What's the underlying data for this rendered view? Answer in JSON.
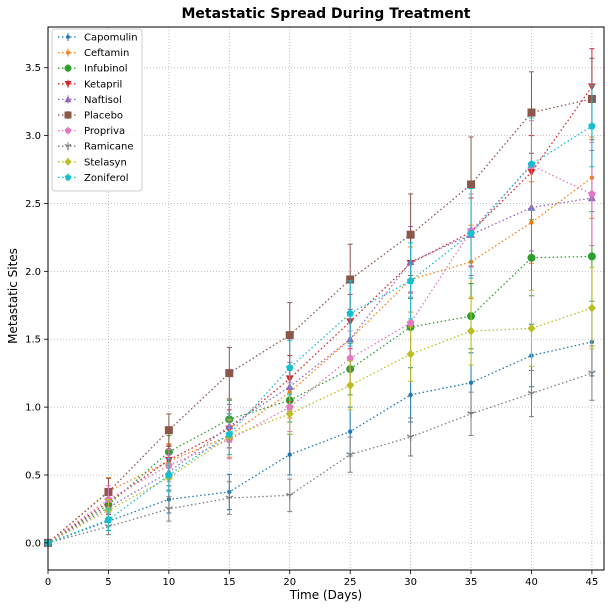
{
  "chart_data": {
    "type": "line",
    "title": "Metastatic Spread During Treatment",
    "xlabel": "Time (Days)",
    "ylabel": "Metastatic Sites",
    "xlim": [
      0,
      46
    ],
    "ylim": [
      -0.2,
      3.8
    ],
    "x_ticks": [
      "0",
      "5",
      "10",
      "15",
      "20",
      "25",
      "30",
      "35",
      "40",
      "45"
    ],
    "y_ticks": [
      "0.0",
      "0.5",
      "1.0",
      "1.5",
      "2.0",
      "2.5",
      "3.0",
      "3.5"
    ],
    "grid": true,
    "legend_position": "top-left",
    "x": [
      0,
      5,
      10,
      15,
      20,
      25,
      30,
      35,
      40,
      45
    ],
    "series": [
      {
        "name": "Capomulin",
        "color": "#1f77b4",
        "marker": "point",
        "values": [
          0,
          0.16,
          0.32,
          0.375,
          0.65,
          0.82,
          1.09,
          1.18,
          1.38,
          1.48
        ],
        "errors": [
          0,
          0.07,
          0.1,
          0.13,
          0.15,
          0.18,
          0.2,
          0.22,
          0.23,
          0.25
        ]
      },
      {
        "name": "Ceftamin",
        "color": "#ff7f0e",
        "marker": "point",
        "values": [
          0,
          0.38,
          0.6,
          0.79,
          1.11,
          1.5,
          1.94,
          2.07,
          2.36,
          2.69
        ],
        "errors": [
          0,
          0.1,
          0.13,
          0.16,
          0.19,
          0.22,
          0.24,
          0.27,
          0.3,
          0.3
        ]
      },
      {
        "name": "Infubinol",
        "color": "#2ca02c",
        "marker": "circle",
        "values": [
          0,
          0.28,
          0.67,
          0.91,
          1.05,
          1.28,
          1.59,
          1.67,
          2.1,
          2.11
        ],
        "errors": [
          0,
          0.09,
          0.12,
          0.14,
          0.16,
          0.19,
          0.21,
          0.24,
          0.28,
          0.33
        ]
      },
      {
        "name": "Ketapril",
        "color": "#d62728",
        "marker": "triangle-down",
        "values": [
          0,
          0.3,
          0.61,
          0.84,
          1.21,
          1.63,
          2.06,
          2.29,
          2.73,
          3.36
        ],
        "errors": [
          0,
          0.09,
          0.11,
          0.14,
          0.17,
          0.2,
          0.22,
          0.25,
          0.27,
          0.28
        ]
      },
      {
        "name": "Naftisol",
        "color": "#9467bd",
        "marker": "triangle-up",
        "values": [
          0,
          0.26,
          0.52,
          0.86,
          1.15,
          1.5,
          2.07,
          2.27,
          2.47,
          2.54
        ],
        "errors": [
          0,
          0.09,
          0.13,
          0.16,
          0.18,
          0.22,
          0.26,
          0.3,
          0.32,
          0.35
        ]
      },
      {
        "name": "Placebo",
        "color": "#8c564b",
        "marker": "square",
        "values": [
          0,
          0.375,
          0.83,
          1.25,
          1.53,
          1.94,
          2.27,
          2.64,
          3.17,
          3.27
        ],
        "errors": [
          0,
          0.1,
          0.12,
          0.19,
          0.24,
          0.26,
          0.3,
          0.35,
          0.3,
          0.3
        ]
      },
      {
        "name": "Propriva",
        "color": "#e377c2",
        "marker": "pentagon",
        "values": [
          0,
          0.32,
          0.57,
          0.76,
          1.0,
          1.36,
          1.62,
          2.3,
          2.78,
          2.57
        ],
        "errors": [
          0,
          0.1,
          0.12,
          0.14,
          0.18,
          0.2,
          0.23,
          0.27,
          0.33,
          0.38
        ]
      },
      {
        "name": "Ramicane",
        "color": "#7f7f7f",
        "marker": "tri-down",
        "values": [
          0,
          0.12,
          0.25,
          0.33,
          0.35,
          0.65,
          0.78,
          0.95,
          1.1,
          1.25
        ],
        "errors": [
          0,
          0.06,
          0.09,
          0.12,
          0.12,
          0.13,
          0.14,
          0.16,
          0.17,
          0.2
        ]
      },
      {
        "name": "Stelasyn",
        "color": "#bcbd22",
        "marker": "diamond",
        "values": [
          0,
          0.24,
          0.48,
          0.78,
          0.95,
          1.16,
          1.39,
          1.56,
          1.58,
          1.73
        ],
        "errors": [
          0,
          0.08,
          0.1,
          0.13,
          0.15,
          0.18,
          0.2,
          0.25,
          0.28,
          0.3
        ]
      },
      {
        "name": "Zoniferol",
        "color": "#17becf",
        "marker": "pentagon",
        "values": [
          0,
          0.17,
          0.5,
          0.8,
          1.29,
          1.69,
          1.93,
          2.28,
          2.79,
          3.07
        ],
        "errors": [
          0,
          0.08,
          0.12,
          0.15,
          0.2,
          0.24,
          0.28,
          0.33,
          0.34,
          0.3
        ]
      }
    ]
  }
}
